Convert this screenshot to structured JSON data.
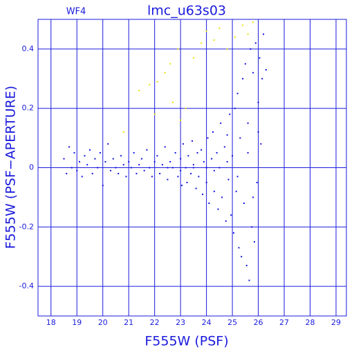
{
  "chart_data": {
    "type": "scatter",
    "title": "lmc_u63s03",
    "subtitle": "WF4",
    "x_label": "F555W (PSF)",
    "y_label": "F555W (PSF−APERTURE)",
    "xlim": [
      17.5,
      29.4
    ],
    "ylim": [
      -0.5,
      0.5
    ],
    "xticks": [
      18,
      19,
      20,
      21,
      22,
      23,
      24,
      25,
      26,
      27,
      28,
      29
    ],
    "yticks": [
      -0.4,
      -0.2,
      0,
      0.2,
      0.4
    ],
    "grid": true,
    "series": [
      {
        "color": "#1010e0",
        "x": [
          18.5,
          18.6,
          18.7,
          18.8,
          18.9,
          19.0,
          19.1,
          19.2,
          19.3,
          19.4,
          19.5,
          19.6,
          19.7,
          19.8,
          19.9,
          20.0,
          20.1,
          20.2,
          20.3,
          20.4,
          20.5,
          20.6,
          20.7,
          20.8,
          20.9,
          21.0,
          21.1,
          21.2,
          21.3,
          21.4,
          21.5,
          21.6,
          21.7,
          21.8,
          21.9,
          22.0,
          22.1,
          22.2,
          22.3,
          22.4,
          22.5,
          22.6,
          22.7,
          22.8,
          22.9,
          23.0,
          23.05,
          23.1,
          23.2,
          23.25,
          23.3,
          23.4,
          23.45,
          23.5,
          23.6,
          23.65,
          23.7,
          23.8,
          23.85,
          23.9,
          24.0,
          24.05,
          24.1,
          24.2,
          24.25,
          24.3,
          24.4,
          24.45,
          24.5,
          24.55,
          24.6,
          24.7,
          24.75,
          24.8,
          24.85,
          24.9,
          24.95,
          25.0,
          25.05,
          25.1,
          25.15,
          25.2,
          25.25,
          25.3,
          25.35,
          25.4,
          25.45,
          25.5,
          25.55,
          25.6,
          25.65,
          25.7,
          25.75,
          25.8,
          25.85,
          25.9,
          25.95,
          26.0,
          26.05,
          26.1,
          26.15,
          26.2,
          26.3,
          23.5,
          24.0,
          24.3,
          24.8,
          25.2,
          25.6,
          25.8,
          26.0,
          22.5,
          23.0
        ],
        "values": [
          0.03,
          -0.02,
          0.07,
          0.0,
          0.05,
          -0.01,
          0.02,
          -0.03,
          0.04,
          0.01,
          0.06,
          -0.02,
          0.03,
          0.0,
          0.05,
          -0.06,
          0.02,
          0.08,
          -0.01,
          0.03,
          0.0,
          -0.02,
          0.04,
          0.01,
          -0.03,
          0.02,
          0.0,
          0.05,
          -0.02,
          0.01,
          0.03,
          -0.01,
          0.06,
          0.0,
          -0.03,
          0.02,
          0.04,
          -0.02,
          0.01,
          0.07,
          -0.04,
          0.02,
          0.0,
          0.05,
          -0.03,
          0.03,
          -0.06,
          0.08,
          0.0,
          -0.05,
          0.04,
          -0.02,
          0.09,
          0.01,
          -0.07,
          0.05,
          -0.03,
          0.06,
          -0.09,
          0.02,
          -0.05,
          0.1,
          -0.12,
          0.03,
          0.12,
          -0.08,
          0.05,
          -0.14,
          0.0,
          0.15,
          -0.1,
          0.07,
          -0.18,
          0.11,
          -0.04,
          0.18,
          -0.16,
          0.04,
          -0.22,
          0.2,
          -0.08,
          0.25,
          -0.27,
          0.1,
          -0.3,
          0.3,
          -0.12,
          0.35,
          -0.33,
          0.15,
          -0.38,
          0.4,
          -0.2,
          0.32,
          -0.25,
          0.42,
          -0.05,
          0.22,
          0.37,
          0.08,
          0.3,
          0.45,
          0.33,
          0.0,
          0.0,
          -0.01,
          0.02,
          -0.03,
          0.05,
          -0.1,
          0.12,
          0.0,
          -0.01
        ]
      },
      {
        "color": "#e8e000",
        "x": [
          21.4,
          21.8,
          22.1,
          22.4,
          22.6,
          22.9,
          23.2,
          23.5,
          23.8,
          24.0,
          24.3,
          24.5,
          24.8,
          25.1,
          25.4,
          25.6,
          25.8,
          22.0,
          22.7,
          23.0,
          20.8
        ],
        "values": [
          0.26,
          0.28,
          0.29,
          0.32,
          0.35,
          0.4,
          0.2,
          0.37,
          0.42,
          0.46,
          0.43,
          0.47,
          0.4,
          0.44,
          0.48,
          0.45,
          0.49,
          0.18,
          0.22,
          0.16,
          0.12
        ]
      }
    ]
  }
}
